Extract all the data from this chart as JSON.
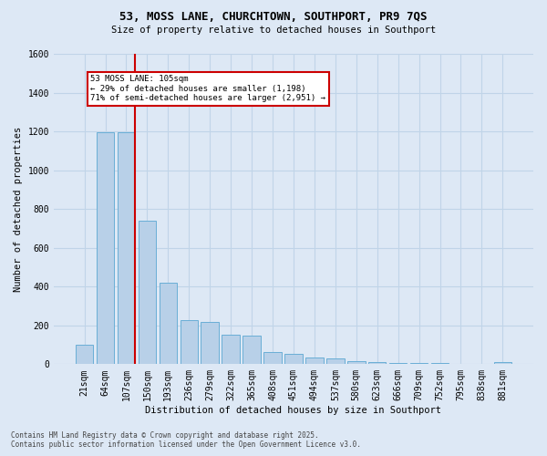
{
  "title_line1": "53, MOSS LANE, CHURCHTOWN, SOUTHPORT, PR9 7QS",
  "title_line2": "Size of property relative to detached houses in Southport",
  "xlabel": "Distribution of detached houses by size in Southport",
  "ylabel": "Number of detached properties",
  "categories": [
    "21sqm",
    "64sqm",
    "107sqm",
    "150sqm",
    "193sqm",
    "236sqm",
    "279sqm",
    "322sqm",
    "365sqm",
    "408sqm",
    "451sqm",
    "494sqm",
    "537sqm",
    "580sqm",
    "623sqm",
    "666sqm",
    "709sqm",
    "752sqm",
    "795sqm",
    "838sqm",
    "881sqm"
  ],
  "values": [
    100,
    1195,
    1195,
    740,
    420,
    225,
    220,
    150,
    145,
    65,
    52,
    35,
    30,
    18,
    13,
    8,
    5,
    4,
    0,
    0,
    12
  ],
  "bar_color": "#b8d0e8",
  "bar_edge_color": "#6aaed6",
  "grid_color": "#c0d4e8",
  "background_color": "#dde8f5",
  "vline_color": "#cc0000",
  "vline_bar_index": 2,
  "annotation_text": "53 MOSS LANE: 105sqm\n← 29% of detached houses are smaller (1,198)\n71% of semi-detached houses are larger (2,951) →",
  "annotation_box_color": "#cc0000",
  "ylim": [
    0,
    1600
  ],
  "yticks": [
    0,
    200,
    400,
    600,
    800,
    1000,
    1200,
    1400,
    1600
  ],
  "footer_line1": "Contains HM Land Registry data © Crown copyright and database right 2025.",
  "footer_line2": "Contains public sector information licensed under the Open Government Licence v3.0."
}
